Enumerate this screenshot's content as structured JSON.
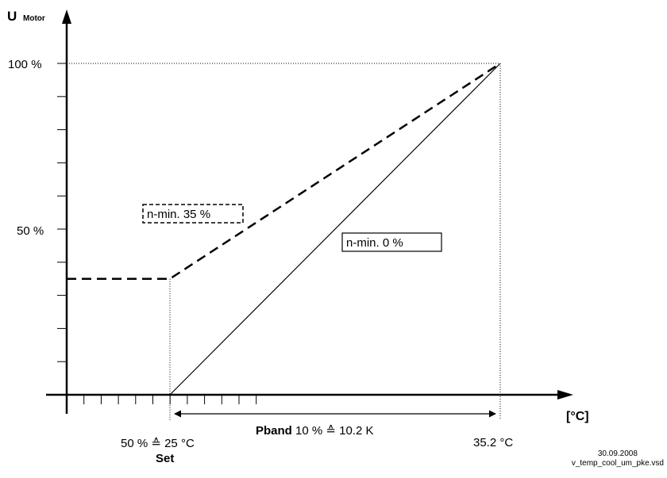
{
  "chart_data": {
    "type": "line",
    "title": "",
    "ylabel": "U",
    "ylabel_sub": "Motor",
    "xlabel": "[°C]",
    "ylim": [
      0,
      100
    ],
    "y_ticks": [
      "100 %",
      "50 %"
    ],
    "x_annotations": {
      "set_point": "50 % ≙ 25 °C",
      "set_caption": "Set",
      "end_point": "35.2 °C",
      "pband_bold": "Pband",
      "pband_text": " 10 % ≙ 10.2 K"
    },
    "x_domain": [
      -10,
      120
    ],
    "x_points": {
      "set": 25,
      "end": 35.2
    },
    "series": [
      {
        "name": "n-min. 35 %",
        "style": "dashed",
        "x": [
          -10,
          25,
          35.2
        ],
        "y": [
          35,
          35,
          100
        ]
      },
      {
        "name": "n-min. 0 %",
        "style": "solid",
        "x": [
          25,
          35.2
        ],
        "y": [
          0,
          100
        ]
      }
    ],
    "grid": false
  },
  "footer": {
    "date": "30.09.2008",
    "filename": "v_temp_cool_um_pke.vsd"
  }
}
